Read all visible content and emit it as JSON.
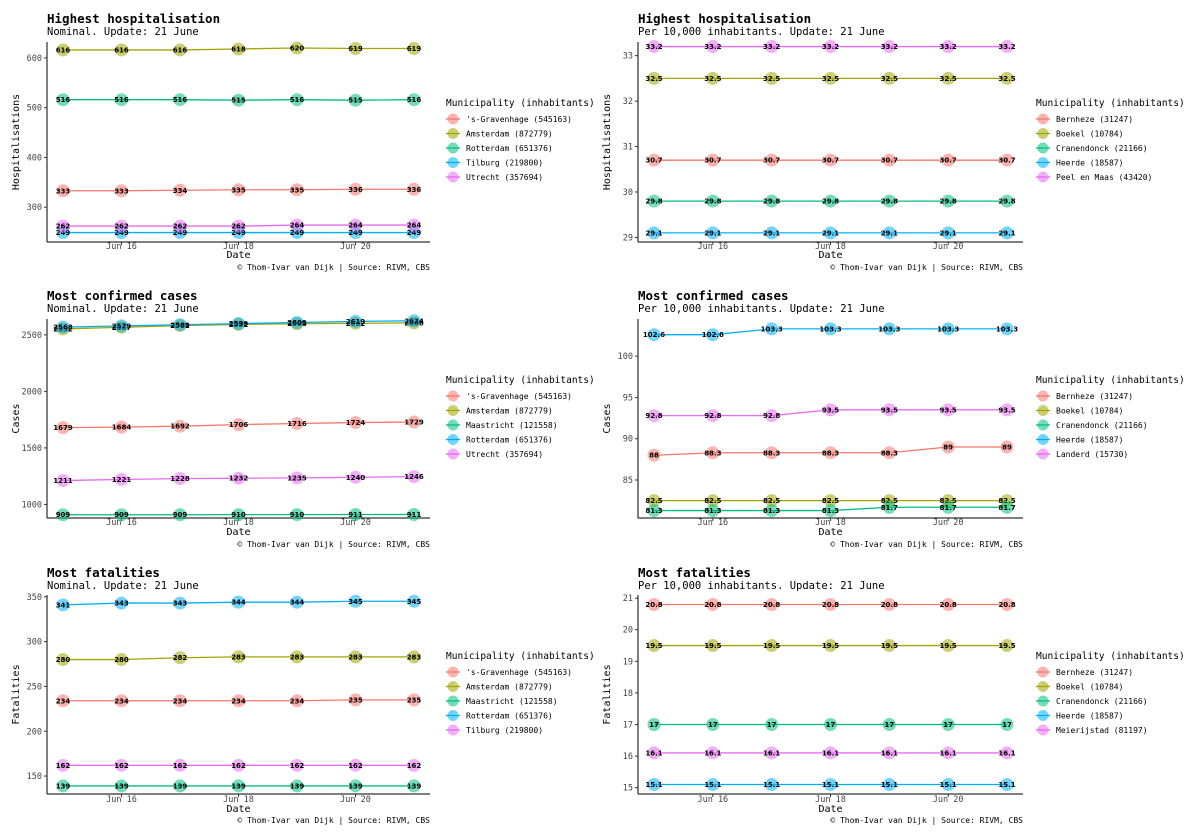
{
  "colors": {
    "c1": "#F8766D",
    "c2": "#A3A500",
    "c3": "#00BF7D",
    "c4": "#00B0F6",
    "c5": "#E76BF3"
  },
  "legend_title": "Municipality (inhabitants)",
  "x_axis_title": "Date",
  "caption": "© Thom-Ivar van Dijk | Source: RIVM, CBS",
  "chart_data": [
    {
      "type": "line",
      "title": "Highest hospitalisation",
      "subtitle": "Nominal. Update: 21 June",
      "xlabel": "Date",
      "ylabel": "Hospitalisations",
      "x": [
        "Jun 15",
        "Jun 16",
        "Jun 17",
        "Jun 18",
        "Jun 19",
        "Jun 20",
        "Jun 21"
      ],
      "xticks": [
        {
          "at": 1,
          "label": "Jun 16"
        },
        {
          "at": 3,
          "label": "Jun 18"
        },
        {
          "at": 5,
          "label": "Jun 20"
        }
      ],
      "ylim": [
        230,
        632
      ],
      "yticks": [
        300,
        400,
        500,
        600
      ],
      "series": [
        {
          "name": "'s-Gravenhage (545163)",
          "color": "c1",
          "values": [
            333,
            333,
            334,
            335,
            335,
            336,
            336
          ]
        },
        {
          "name": "Amsterdam (872779)",
          "color": "c2",
          "values": [
            616,
            616,
            616,
            618,
            620,
            619,
            619
          ]
        },
        {
          "name": "Rotterdam (651376)",
          "color": "c3",
          "values": [
            516,
            516,
            516,
            515,
            516,
            515,
            516
          ]
        },
        {
          "name": "Tilburg (219800)",
          "color": "c4",
          "values": [
            249,
            249,
            249,
            249,
            249,
            249,
            249
          ]
        },
        {
          "name": "Utrecht (357694)",
          "color": "c5",
          "values": [
            262,
            262,
            262,
            262,
            264,
            264,
            264
          ]
        }
      ]
    },
    {
      "type": "line",
      "title": "Highest hospitalisation",
      "subtitle": "Per 10,000 inhabitants. Update: 21 June",
      "xlabel": "Date",
      "ylabel": "Hospitalisations",
      "x": [
        "Jun 15",
        "Jun 16",
        "Jun 17",
        "Jun 18",
        "Jun 19",
        "Jun 20",
        "Jun 21"
      ],
      "xticks": [
        {
          "at": 1,
          "label": "Jun 16"
        },
        {
          "at": 3,
          "label": "Jun 18"
        },
        {
          "at": 5,
          "label": "Jun 20"
        }
      ],
      "ylim": [
        28.9,
        33.3
      ],
      "yticks": [
        29,
        30,
        31,
        32,
        33
      ],
      "series": [
        {
          "name": "Bernheze (31247)",
          "color": "c1",
          "values": [
            30.7,
            30.7,
            30.7,
            30.7,
            30.7,
            30.7,
            30.7
          ]
        },
        {
          "name": "Boekel (10784)",
          "color": "c2",
          "values": [
            32.5,
            32.5,
            32.5,
            32.5,
            32.5,
            32.5,
            32.5
          ]
        },
        {
          "name": "Cranendonck (21166)",
          "color": "c3",
          "values": [
            29.8,
            29.8,
            29.8,
            29.8,
            29.8,
            29.8,
            29.8
          ]
        },
        {
          "name": "Heerde (18587)",
          "color": "c4",
          "values": [
            29.1,
            29.1,
            29.1,
            29.1,
            29.1,
            29.1,
            29.1
          ]
        },
        {
          "name": "Peel en Maas (43420)",
          "color": "c5",
          "values": [
            33.2,
            33.2,
            33.2,
            33.2,
            33.2,
            33.2,
            33.2
          ]
        }
      ]
    },
    {
      "type": "line",
      "title": "Most confirmed cases",
      "subtitle": "Nominal. Update: 21 June",
      "xlabel": "Date",
      "ylabel": "Cases",
      "x": [
        "Jun 15",
        "Jun 16",
        "Jun 17",
        "Jun 18",
        "Jun 19",
        "Jun 20",
        "Jun 21"
      ],
      "xticks": [
        {
          "at": 1,
          "label": "Jun 16"
        },
        {
          "at": 3,
          "label": "Jun 18"
        },
        {
          "at": 5,
          "label": "Jun 20"
        }
      ],
      "ylim": [
        880,
        2640
      ],
      "yticks": [
        1000,
        1500,
        2000,
        2500
      ],
      "series": [
        {
          "name": "'s-Gravenhage (545163)",
          "color": "c1",
          "values": [
            1679,
            1684,
            1692,
            1706,
            1716,
            1724,
            1729
          ]
        },
        {
          "name": "Amsterdam (872779)",
          "color": "c2",
          "values": [
            2552,
            2567,
            2582,
            2592,
            2598,
            2602,
            2606
          ]
        },
        {
          "name": "Maastricht (121558)",
          "color": "c3",
          "values": [
            909,
            909,
            909,
            910,
            910,
            911,
            911
          ]
        },
        {
          "name": "Rotterdam (651376)",
          "color": "c4",
          "values": [
            2568,
            2579,
            2589,
            2599,
            2609,
            2619,
            2624
          ]
        },
        {
          "name": "Utrecht (357694)",
          "color": "c5",
          "values": [
            1211,
            1221,
            1228,
            1232,
            1235,
            1240,
            1246
          ]
        }
      ]
    },
    {
      "type": "line",
      "title": "Most confirmed cases",
      "subtitle": "Per 10,000 inhabitants. Update: 21 June",
      "xlabel": "Date",
      "ylabel": "Cases",
      "x": [
        "Jun 15",
        "Jun 16",
        "Jun 17",
        "Jun 18",
        "Jun 19",
        "Jun 20",
        "Jun 21"
      ],
      "xticks": [
        {
          "at": 1,
          "label": "Jun 16"
        },
        {
          "at": 3,
          "label": "Jun 18"
        },
        {
          "at": 5,
          "label": "Jun 20"
        }
      ],
      "ylim": [
        80.4,
        104.5
      ],
      "yticks": [
        85,
        90,
        95,
        100
      ],
      "series": [
        {
          "name": "Bernheze (31247)",
          "color": "c1",
          "values": [
            88,
            88.3,
            88.3,
            88.3,
            88.3,
            89,
            89
          ]
        },
        {
          "name": "Boekel (10784)",
          "color": "c2",
          "values": [
            82.5,
            82.5,
            82.5,
            82.5,
            82.5,
            82.5,
            82.5
          ]
        },
        {
          "name": "Cranendonck (21166)",
          "color": "c3",
          "values": [
            81.3,
            81.3,
            81.3,
            81.3,
            81.7,
            81.7,
            81.7
          ]
        },
        {
          "name": "Heerde (18587)",
          "color": "c4",
          "values": [
            102.6,
            102.6,
            103.3,
            103.3,
            103.3,
            103.3,
            103.3
          ]
        },
        {
          "name": "Landerd (15730)",
          "color": "c5",
          "values": [
            92.8,
            92.8,
            92.8,
            93.5,
            93.5,
            93.5,
            93.5
          ]
        }
      ]
    },
    {
      "type": "line",
      "title": "Most fatalities",
      "subtitle": "Nominal. Update: 21 June",
      "xlabel": "Date",
      "ylabel": "Fatalities",
      "x": [
        "Jun 15",
        "Jun 16",
        "Jun 17",
        "Jun 18",
        "Jun 19",
        "Jun 20",
        "Jun 21"
      ],
      "xticks": [
        {
          "at": 1,
          "label": "Jun 16"
        },
        {
          "at": 3,
          "label": "Jun 18"
        },
        {
          "at": 5,
          "label": "Jun 20"
        }
      ],
      "ylim": [
        130,
        352
      ],
      "yticks": [
        150,
        200,
        250,
        300,
        350
      ],
      "series": [
        {
          "name": "'s-Gravenhage (545163)",
          "color": "c1",
          "values": [
            234,
            234,
            234,
            234,
            234,
            235,
            235
          ]
        },
        {
          "name": "Amsterdam (872779)",
          "color": "c2",
          "values": [
            280,
            280,
            282,
            283,
            283,
            283,
            283
          ]
        },
        {
          "name": "Maastricht (121558)",
          "color": "c3",
          "values": [
            139,
            139,
            139,
            139,
            139,
            139,
            139
          ]
        },
        {
          "name": "Rotterdam (651376)",
          "color": "c4",
          "values": [
            341,
            343,
            343,
            344,
            344,
            345,
            345
          ]
        },
        {
          "name": "Tilburg (219800)",
          "color": "c5",
          "values": [
            162,
            162,
            162,
            162,
            162,
            162,
            162
          ]
        }
      ]
    },
    {
      "type": "line",
      "title": "Most fatalities",
      "subtitle": "Per 10,000 inhabitants. Update: 21 June",
      "xlabel": "Date",
      "ylabel": "Fatalities",
      "x": [
        "Jun 15",
        "Jun 16",
        "Jun 17",
        "Jun 18",
        "Jun 19",
        "Jun 20",
        "Jun 21"
      ],
      "xticks": [
        {
          "at": 1,
          "label": "Jun 16"
        },
        {
          "at": 3,
          "label": "Jun 18"
        },
        {
          "at": 5,
          "label": "Jun 20"
        }
      ],
      "ylim": [
        14.8,
        21.1
      ],
      "yticks": [
        15,
        16,
        17,
        18,
        19,
        20,
        21
      ],
      "series": [
        {
          "name": "Bernheze (31247)",
          "color": "c1",
          "values": [
            20.8,
            20.8,
            20.8,
            20.8,
            20.8,
            20.8,
            20.8
          ]
        },
        {
          "name": "Boekel (10784)",
          "color": "c2",
          "values": [
            19.5,
            19.5,
            19.5,
            19.5,
            19.5,
            19.5,
            19.5
          ]
        },
        {
          "name": "Cranendonck (21166)",
          "color": "c3",
          "values": [
            17,
            17,
            17,
            17,
            17,
            17,
            17
          ]
        },
        {
          "name": "Heerde (18587)",
          "color": "c4",
          "values": [
            15.1,
            15.1,
            15.1,
            15.1,
            15.1,
            15.1,
            15.1
          ]
        },
        {
          "name": "Meierijstad (81197)",
          "color": "c5",
          "values": [
            16.1,
            16.1,
            16.1,
            16.1,
            16.1,
            16.1,
            16.1
          ]
        }
      ]
    }
  ]
}
